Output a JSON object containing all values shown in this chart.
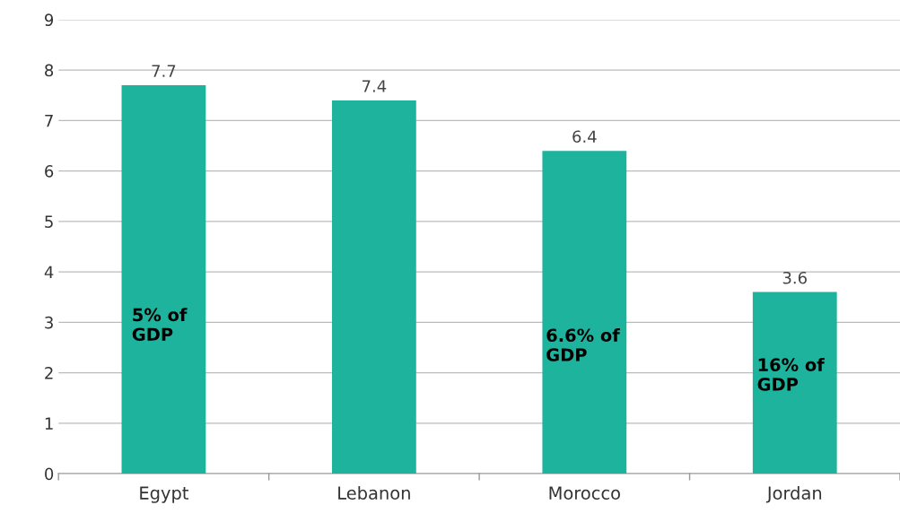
{
  "chart_data": {
    "type": "bar",
    "categories": [
      "Egypt",
      "Lebanon",
      "Morocco",
      "Jordan"
    ],
    "values": [
      7.7,
      7.4,
      6.4,
      3.6
    ],
    "color": "#1db39c",
    "data_labels": true,
    "ylim": [
      0,
      9
    ],
    "yticks": [
      0,
      1,
      2,
      3,
      4,
      5,
      6,
      7,
      8,
      9
    ],
    "grid": "y",
    "annotations": [
      "5% of\nGDP",
      "6.6% of\nGDP",
      "16% of\nGDP"
    ]
  }
}
